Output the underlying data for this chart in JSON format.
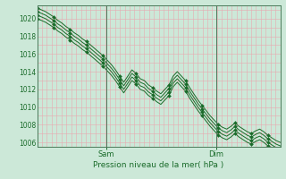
{
  "title": "",
  "xlabel": "Pression niveau de la mer( hPa )",
  "ylabel": "",
  "background_color": "#cce8d8",
  "grid_color": "#e8a8b0",
  "line_color": "#1a6b2a",
  "ylim": [
    1005.5,
    1021.5
  ],
  "yticks": [
    1006,
    1008,
    1010,
    1012,
    1014,
    1016,
    1018,
    1020
  ],
  "xtick_positions": [
    0.285,
    0.735
  ],
  "xtick_labels": [
    "Sam",
    "Dim"
  ],
  "num_points": 60,
  "lines": [
    [
      1021.2,
      1021.0,
      1020.8,
      1020.5,
      1020.2,
      1019.8,
      1019.5,
      1019.1,
      1018.8,
      1018.4,
      1018.1,
      1017.7,
      1017.4,
      1017.0,
      1016.6,
      1016.2,
      1015.8,
      1015.3,
      1014.8,
      1014.2,
      1013.5,
      1012.8,
      1013.5,
      1014.2,
      1013.8,
      1013.2,
      1013.0,
      1012.5,
      1012.2,
      1011.8,
      1011.5,
      1012.0,
      1012.5,
      1013.5,
      1014.0,
      1013.5,
      1013.0,
      1012.2,
      1011.5,
      1010.8,
      1010.2,
      1009.6,
      1009.0,
      1008.5,
      1008.0,
      1007.7,
      1007.5,
      1007.8,
      1008.2,
      1007.8,
      1007.5,
      1007.2,
      1007.0,
      1007.3,
      1007.5,
      1007.2,
      1006.8,
      1006.5,
      1006.2,
      1006.0
    ],
    [
      1020.8,
      1020.6,
      1020.4,
      1020.1,
      1019.8,
      1019.4,
      1019.1,
      1018.7,
      1018.4,
      1018.0,
      1017.7,
      1017.3,
      1017.0,
      1016.6,
      1016.2,
      1015.8,
      1015.4,
      1014.9,
      1014.4,
      1013.8,
      1013.1,
      1012.4,
      1013.1,
      1013.8,
      1013.4,
      1012.8,
      1012.6,
      1012.1,
      1011.8,
      1011.4,
      1011.1,
      1011.6,
      1012.1,
      1013.1,
      1013.6,
      1013.1,
      1012.6,
      1011.8,
      1011.1,
      1010.4,
      1009.8,
      1009.2,
      1008.6,
      1008.1,
      1007.6,
      1007.3,
      1007.1,
      1007.4,
      1007.8,
      1007.4,
      1007.1,
      1006.8,
      1006.6,
      1006.9,
      1007.1,
      1006.8,
      1006.4,
      1006.1,
      1005.8,
      1005.6
    ],
    [
      1020.4,
      1020.2,
      1020.0,
      1019.7,
      1019.4,
      1019.0,
      1018.7,
      1018.3,
      1018.0,
      1017.6,
      1017.3,
      1016.9,
      1016.6,
      1016.2,
      1015.8,
      1015.4,
      1015.0,
      1014.5,
      1014.0,
      1013.4,
      1012.7,
      1012.0,
      1012.7,
      1013.4,
      1013.0,
      1012.4,
      1012.2,
      1011.7,
      1011.4,
      1011.0,
      1010.7,
      1011.2,
      1011.7,
      1012.7,
      1013.2,
      1012.7,
      1012.2,
      1011.4,
      1010.7,
      1010.0,
      1009.4,
      1008.8,
      1008.2,
      1007.7,
      1007.2,
      1006.9,
      1006.7,
      1007.0,
      1007.4,
      1007.0,
      1006.7,
      1006.4,
      1006.2,
      1006.5,
      1006.7,
      1006.4,
      1006.0,
      1005.7,
      1005.4,
      1005.2
    ],
    [
      1020.0,
      1019.8,
      1019.6,
      1019.3,
      1019.0,
      1018.6,
      1018.3,
      1017.9,
      1017.6,
      1017.2,
      1016.9,
      1016.5,
      1016.2,
      1015.8,
      1015.4,
      1015.0,
      1014.6,
      1014.1,
      1013.6,
      1013.0,
      1012.3,
      1011.6,
      1012.3,
      1013.0,
      1012.6,
      1012.0,
      1011.8,
      1011.3,
      1011.0,
      1010.6,
      1010.3,
      1010.8,
      1011.3,
      1012.3,
      1012.8,
      1012.3,
      1011.8,
      1011.0,
      1010.3,
      1009.6,
      1009.0,
      1008.4,
      1007.8,
      1007.3,
      1006.8,
      1006.5,
      1006.3,
      1006.6,
      1007.0,
      1006.6,
      1006.3,
      1006.0,
      1005.8,
      1006.1,
      1006.3,
      1006.0,
      1005.6,
      1005.3,
      1005.0,
      1004.8
    ]
  ]
}
